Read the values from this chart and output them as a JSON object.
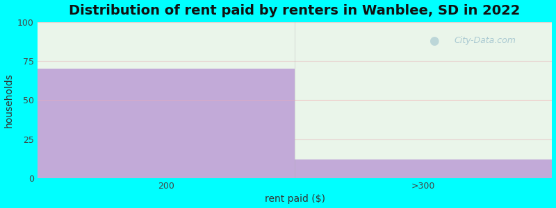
{
  "categories": [
    "200",
    ">300"
  ],
  "values": [
    70,
    12
  ],
  "bar_color": "#c2aad8",
  "title": "Distribution of rent paid by renters in Wanblee, SD in 2022",
  "xlabel": "rent paid ($)",
  "ylabel": "households",
  "ylim": [
    0,
    100
  ],
  "yticks": [
    0,
    25,
    50,
    75,
    100
  ],
  "figure_bgcolor": "#00ffff",
  "plot_bgcolor": "#eaf5ea",
  "title_fontsize": 14,
  "label_fontsize": 10,
  "tick_fontsize": 9,
  "watermark_text": "City-Data.com",
  "hline_color": "#ffaaaa",
  "hline_y": 50,
  "divider_color": "#aaaaaa",
  "n_cols": 2
}
